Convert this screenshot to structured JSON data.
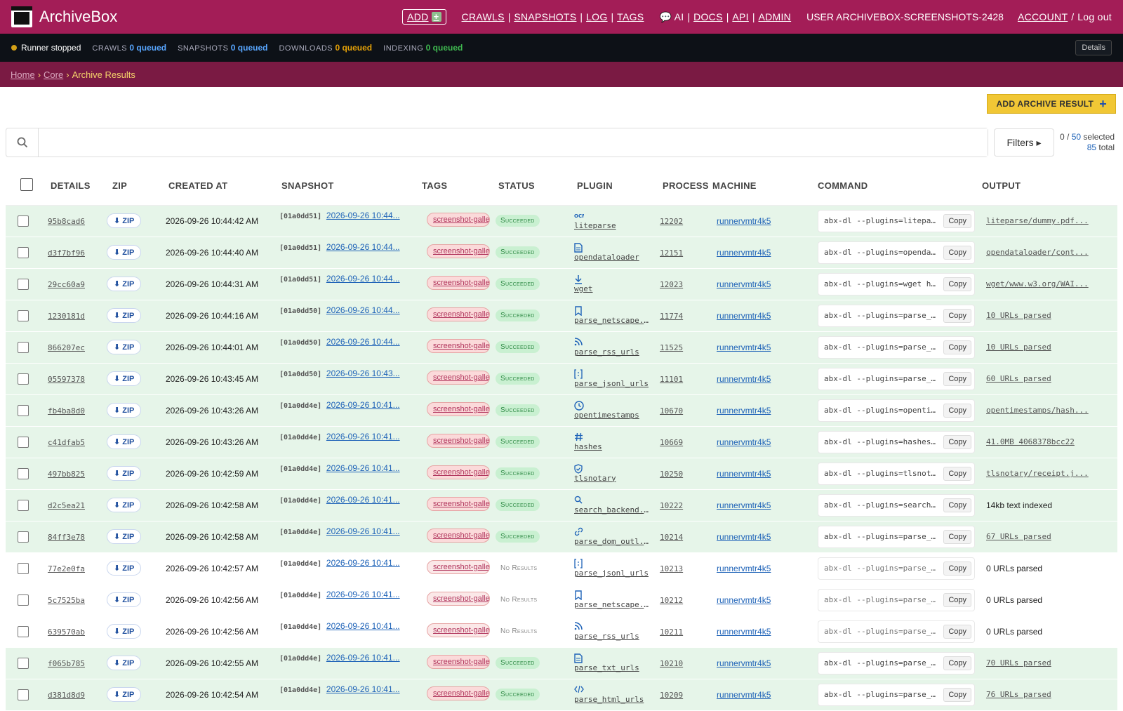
{
  "header": {
    "brand": "ArchiveBox",
    "add_label": "ADD",
    "nav1": [
      "CRAWLS",
      "SNAPSHOTS",
      "LOG",
      "TAGS"
    ],
    "nav2": [
      "💬 AI",
      "DOCS",
      "API",
      "ADMIN"
    ],
    "user": "USER ARCHIVEBOX-SCREENSHOTS-2428",
    "account": "ACCOUNT",
    "logout": "Log out"
  },
  "statusbar": {
    "runner": "Runner stopped",
    "crawls_label": "CRAWLS",
    "crawls_value": "0 queued",
    "snapshots_label": "SNAPSHOTS",
    "snapshots_value": "0 queued",
    "downloads_label": "DOWNLOADS",
    "downloads_value": "0 queued",
    "indexing_label": "INDEXING",
    "indexing_value": "0 queued",
    "details": "Details"
  },
  "breadcrumb": {
    "home": "Home",
    "core": "Core",
    "current": "Archive Results"
  },
  "toolbar": {
    "add_result": "ADD ARCHIVE RESULT",
    "filters": "Filters ▸",
    "sel_prefix": "0 / ",
    "sel_page": "50",
    "sel_suffix": " selected",
    "total_num": "85",
    "total_suffix": " total",
    "search_placeholder": ""
  },
  "columns": [
    "DETAILS",
    "ZIP",
    "CREATED AT",
    "SNAPSHOT",
    "TAGS",
    "STATUS",
    "PLUGIN",
    "PROCESS",
    "MACHINE",
    "COMMAND",
    "OUTPUT"
  ],
  "rows": [
    {
      "id": "95b8cad6",
      "zip": "⬇ ZIP",
      "created": "2026-09-26 10:44:42 AM",
      "snap_id": "[01a0dd51]",
      "snap_date": "2026-09-26 10:44...",
      "tag": "screenshot-gallery",
      "status": "Succeeded",
      "ok": true,
      "icon": "ocr",
      "plugin": "liteparse",
      "process": "12202",
      "machine": "runnervmtr4k5",
      "cmd": "abx-dl --plugins=litepa...",
      "copy": "Copy",
      "output": "liteparse/dummy.pdf...",
      "out_link": true
    },
    {
      "id": "d3f7bf96",
      "zip": "⬇ ZIP",
      "created": "2026-09-26 10:44:40 AM",
      "snap_id": "[01a0dd51]",
      "snap_date": "2026-09-26 10:44...",
      "tag": "screenshot-gallery",
      "status": "Succeeded",
      "ok": true,
      "icon": "doc",
      "plugin": "opendataloader",
      "process": "12151",
      "machine": "runnervmtr4k5",
      "cmd": "abx-dl --plugins=openda...",
      "copy": "Copy",
      "output": "opendataloader/cont...",
      "out_link": true
    },
    {
      "id": "29cc60a9",
      "zip": "⬇ ZIP",
      "created": "2026-09-26 10:44:31 AM",
      "snap_id": "[01a0dd51]",
      "snap_date": "2026-09-26 10:44...",
      "tag": "screenshot-gallery",
      "status": "Succeeded",
      "ok": true,
      "icon": "down",
      "plugin": "wget",
      "process": "12023",
      "machine": "runnervmtr4k5",
      "cmd": "abx-dl --plugins=wget h...",
      "copy": "Copy",
      "output": "wget/www.w3.org/WAI...",
      "out_link": true
    },
    {
      "id": "1230181d",
      "zip": "⬇ ZIP",
      "created": "2026-09-26 10:44:16 AM",
      "snap_id": "[01a0dd50]",
      "snap_date": "2026-09-26 10:44...",
      "tag": "screenshot-gallery",
      "status": "Succeeded",
      "ok": true,
      "icon": "bookmark",
      "plugin": "parse_netscape...",
      "process": "11774",
      "machine": "runnervmtr4k5",
      "cmd": "abx-dl --plugins=parse_...",
      "copy": "Copy",
      "output": "10 URLs parsed",
      "out_link": true
    },
    {
      "id": "866207ec",
      "zip": "⬇ ZIP",
      "created": "2026-09-26 10:44:01 AM",
      "snap_id": "[01a0dd50]",
      "snap_date": "2026-09-26 10:44...",
      "tag": "screenshot-gallery",
      "status": "Succeeded",
      "ok": true,
      "icon": "rss",
      "plugin": "parse_rss_urls",
      "process": "11525",
      "machine": "runnervmtr4k5",
      "cmd": "abx-dl --plugins=parse_...",
      "copy": "Copy",
      "output": "10 URLs parsed",
      "out_link": true
    },
    {
      "id": "05597378",
      "zip": "⬇ ZIP",
      "created": "2026-09-26 10:43:45 AM",
      "snap_id": "[01a0dd50]",
      "snap_date": "2026-09-26 10:43...",
      "tag": "screenshot-gallery",
      "status": "Succeeded",
      "ok": true,
      "icon": "json",
      "plugin": "parse_jsonl_urls",
      "process": "11101",
      "machine": "runnervmtr4k5",
      "cmd": "abx-dl --plugins=parse_...",
      "copy": "Copy",
      "output": "60 URLs parsed",
      "out_link": true
    },
    {
      "id": "fb4ba8d0",
      "zip": "⬇ ZIP",
      "created": "2026-09-26 10:43:26 AM",
      "snap_id": "[01a0dd4e]",
      "snap_date": "2026-09-26 10:41...",
      "tag": "screenshot-gallery",
      "status": "Succeeded",
      "ok": true,
      "icon": "clock",
      "plugin": "opentimestamps",
      "process": "10670",
      "machine": "runnervmtr4k5",
      "cmd": "abx-dl --plugins=openti...",
      "copy": "Copy",
      "output": "opentimestamps/hash...",
      "out_link": true
    },
    {
      "id": "c41dfab5",
      "zip": "⬇ ZIP",
      "created": "2026-09-26 10:43:26 AM",
      "snap_id": "[01a0dd4e]",
      "snap_date": "2026-09-26 10:41...",
      "tag": "screenshot-gallery",
      "status": "Succeeded",
      "ok": true,
      "icon": "hash",
      "plugin": "hashes",
      "process": "10669",
      "machine": "runnervmtr4k5",
      "cmd": "abx-dl --plugins=hashes...",
      "copy": "Copy",
      "output": "41.0MB 4068378bcc22",
      "out_link": true
    },
    {
      "id": "497bb825",
      "zip": "⬇ ZIP",
      "created": "2026-09-26 10:42:59 AM",
      "snap_id": "[01a0dd4e]",
      "snap_date": "2026-09-26 10:41...",
      "tag": "screenshot-gallery",
      "status": "Succeeded",
      "ok": true,
      "icon": "shield",
      "plugin": "tlsnotary",
      "process": "10250",
      "machine": "runnervmtr4k5",
      "cmd": "abx-dl --plugins=tlsnot...",
      "copy": "Copy",
      "output": "tlsnotary/receipt.j...",
      "out_link": true
    },
    {
      "id": "d2c5ea21",
      "zip": "⬇ ZIP",
      "created": "2026-09-26 10:42:58 AM",
      "snap_id": "[01a0dd4e]",
      "snap_date": "2026-09-26 10:41...",
      "tag": "screenshot-gallery",
      "status": "Succeeded",
      "ok": true,
      "icon": "search",
      "plugin": "search_backend...",
      "process": "10222",
      "machine": "runnervmtr4k5",
      "cmd": "abx-dl --plugins=search...",
      "copy": "Copy",
      "output": "14kb text indexed",
      "out_link": false
    },
    {
      "id": "84ff3e78",
      "zip": "⬇ ZIP",
      "created": "2026-09-26 10:42:58 AM",
      "snap_id": "[01a0dd4e]",
      "snap_date": "2026-09-26 10:41...",
      "tag": "screenshot-gallery",
      "status": "Succeeded",
      "ok": true,
      "icon": "link",
      "plugin": "parse_dom_outl...",
      "process": "10214",
      "machine": "runnervmtr4k5",
      "cmd": "abx-dl --plugins=parse_...",
      "copy": "Copy",
      "output": "67 URLs parsed",
      "out_link": true
    },
    {
      "id": "77e2e0fa",
      "zip": "⬇ ZIP",
      "created": "2026-09-26 10:42:57 AM",
      "snap_id": "[01a0dd4e]",
      "snap_date": "2026-09-26 10:41...",
      "tag": "screenshot-gallery",
      "status": "No Results",
      "ok": false,
      "icon": "json",
      "plugin": "parse_jsonl_urls",
      "process": "10213",
      "machine": "runnervmtr4k5",
      "cmd": "abx-dl --plugins=parse_...",
      "copy": "Copy",
      "output": "0 URLs parsed",
      "out_link": false
    },
    {
      "id": "5c7525ba",
      "zip": "⬇ ZIP",
      "created": "2026-09-26 10:42:56 AM",
      "snap_id": "[01a0dd4e]",
      "snap_date": "2026-09-26 10:41...",
      "tag": "screenshot-gallery",
      "status": "No Results",
      "ok": false,
      "icon": "bookmark",
      "plugin": "parse_netscape...",
      "process": "10212",
      "machine": "runnervmtr4k5",
      "cmd": "abx-dl --plugins=parse_...",
      "copy": "Copy",
      "output": "0 URLs parsed",
      "out_link": false
    },
    {
      "id": "639570ab",
      "zip": "⬇ ZIP",
      "created": "2026-09-26 10:42:56 AM",
      "snap_id": "[01a0dd4e]",
      "snap_date": "2026-09-26 10:41...",
      "tag": "screenshot-gallery",
      "status": "No Results",
      "ok": false,
      "icon": "rss",
      "plugin": "parse_rss_urls",
      "process": "10211",
      "machine": "runnervmtr4k5",
      "cmd": "abx-dl --plugins=parse_...",
      "copy": "Copy",
      "output": "0 URLs parsed",
      "out_link": false
    },
    {
      "id": "f065b785",
      "zip": "⬇ ZIP",
      "created": "2026-09-26 10:42:55 AM",
      "snap_id": "[01a0dd4e]",
      "snap_date": "2026-09-26 10:41...",
      "tag": "screenshot-gallery",
      "status": "Succeeded",
      "ok": true,
      "icon": "doc",
      "plugin": "parse_txt_urls",
      "process": "10210",
      "machine": "runnervmtr4k5",
      "cmd": "abx-dl --plugins=parse_...",
      "copy": "Copy",
      "output": "70 URLs parsed",
      "out_link": true
    },
    {
      "id": "d381d8d9",
      "zip": "⬇ ZIP",
      "created": "2026-09-26 10:42:54 AM",
      "snap_id": "[01a0dd4e]",
      "snap_date": "2026-09-26 10:41...",
      "tag": "screenshot-gallery",
      "status": "Succeeded",
      "ok": true,
      "icon": "code",
      "plugin": "parse_html_urls",
      "process": "10209",
      "machine": "runnervmtr4k5",
      "cmd": "abx-dl --plugins=parse_...",
      "copy": "Copy",
      "output": "76 URLs parsed",
      "out_link": true
    }
  ]
}
